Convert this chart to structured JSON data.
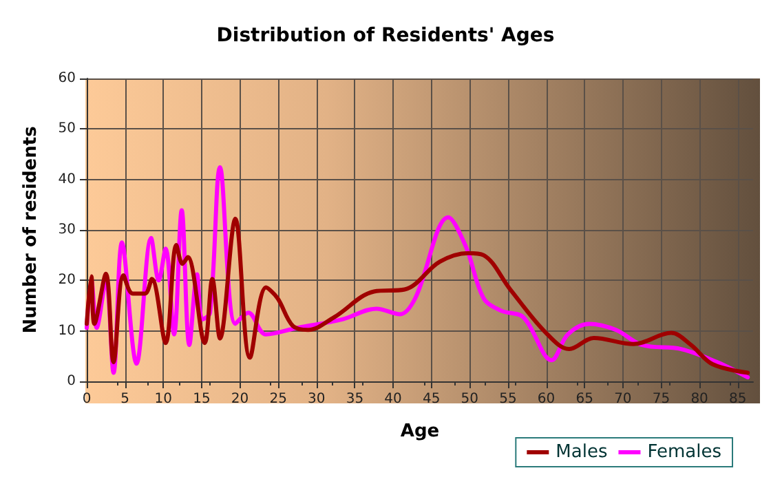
{
  "chart_data": {
    "type": "line",
    "title": "Distribution of Residents' Ages",
    "xlabel": "Age",
    "ylabel": "Number of residents",
    "xlim": [
      0,
      87
    ],
    "xticks": [
      0,
      5,
      10,
      15,
      20,
      25,
      30,
      35,
      40,
      45,
      50,
      55,
      60,
      65,
      70,
      75,
      80,
      85
    ],
    "ylim": [
      0,
      60
    ],
    "yticks": [
      0,
      10,
      20,
      30,
      40,
      50,
      60
    ],
    "grid": true,
    "legend": "bottom right",
    "marker": "none",
    "line_style": "solid",
    "series": [
      {
        "name": "Males",
        "color": "#a00000",
        "x": [
          0,
          0.6,
          1,
          2.5,
          3.5,
          4.8,
          6,
          7.6,
          8.5,
          10.3,
          11.7,
          12.5,
          13.2,
          15.4,
          16.4,
          17.4,
          19.4,
          21.3,
          23.4,
          24.9,
          26.9,
          28.9,
          32.3,
          37.5,
          41.5,
          46.1,
          49.8,
          51.8,
          55.3,
          59.9,
          63,
          66.2,
          71.4,
          76.3,
          78.9,
          81.7,
          86.3
        ],
        "values": [
          11.4,
          20.8,
          11.4,
          21.3,
          3.8,
          21,
          17.4,
          17.4,
          20.3,
          7.6,
          27,
          23.3,
          24.6,
          7.6,
          20.3,
          8.5,
          32.2,
          4.7,
          18.6,
          16.5,
          11,
          10.2,
          12.7,
          17.8,
          18.2,
          23.7,
          25.4,
          25,
          18.2,
          9.7,
          6.4,
          8.6,
          7.4,
          9.6,
          7.2,
          3.4,
          1.7
        ]
      },
      {
        "name": "Females",
        "color": "#ff00ff",
        "x": [
          0,
          0.6,
          1.3,
          2.5,
          3.5,
          4.6,
          6.5,
          8.4,
          9.4,
          10.3,
          11.4,
          12.4,
          13.4,
          14.4,
          15.1,
          16.1,
          17.4,
          19.4,
          21.1,
          23.4,
          27.5,
          33.4,
          37.8,
          40.9,
          42.9,
          47.2,
          49.5,
          51.8,
          54.1,
          57,
          60.7,
          62.8,
          65.6,
          69.1,
          72.5,
          77.6,
          82.3,
          86.3
        ],
        "values": [
          10.6,
          20,
          10.6,
          20,
          1.7,
          27.5,
          3.5,
          28.4,
          20,
          26.3,
          9.3,
          33.9,
          7.2,
          21.2,
          12.3,
          13.6,
          42.4,
          11.4,
          13.6,
          9.3,
          10.6,
          12.3,
          14.4,
          13.3,
          16.5,
          32.5,
          26.7,
          16.5,
          14,
          12.7,
          4.2,
          9.3,
          11.4,
          10.2,
          7.2,
          6.4,
          3.8,
          0.8
        ]
      }
    ]
  }
}
